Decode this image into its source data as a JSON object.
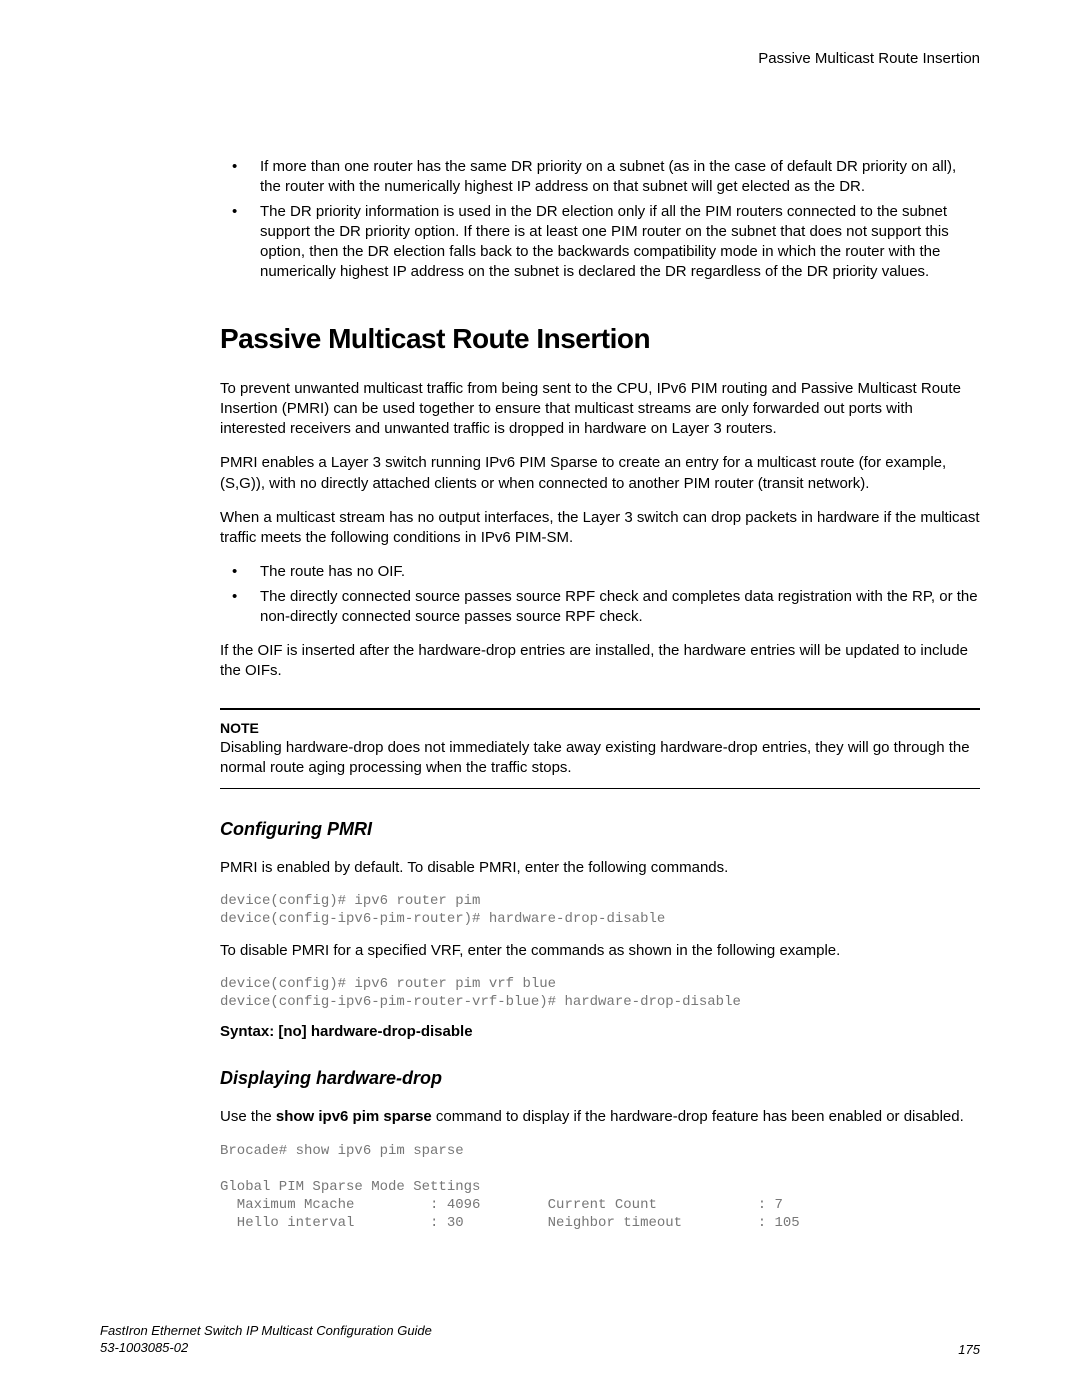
{
  "header": {
    "title": "Passive Multicast Route Insertion"
  },
  "intro_bullets": [
    "If more than one router has the same DR priority on a subnet (as in the case of default DR priority on all), the router with the numerically highest IP address on that subnet will get elected as the DR.",
    "The DR priority information is used in the DR election only if all the PIM routers connected to the subnet support the DR priority option. If there is at least one PIM router on the subnet that does not support this option, then the DR election falls back to the backwards compatibility mode in which the router with the numerically highest IP address on the subnet is declared the DR regardless of the DR priority values."
  ],
  "main_heading": "Passive Multicast Route Insertion",
  "para1": "To prevent unwanted multicast traffic from being sent to the CPU, IPv6 PIM routing and Passive Multicast Route Insertion (PMRI) can be used together to ensure that multicast streams are only forwarded out ports with interested receivers and unwanted traffic is dropped in hardware on Layer 3 routers.",
  "para2": "PMRI enables a Layer 3 switch running IPv6 PIM Sparse to create an entry for a multicast route (for example, (S,G)), with no directly attached clients or when connected to another PIM router (transit network).",
  "para3": "When a multicast stream has no output interfaces, the Layer 3 switch can drop packets in hardware if the multicast traffic meets the following conditions in IPv6 PIM-SM.",
  "conditions": [
    "The route has no OIF.",
    "The directly connected source passes source RPF check and completes data registration with the RP, or the non-directly connected source passes source RPF check."
  ],
  "para4": "If the OIF is inserted after the hardware-drop entries are installed, the hardware entries will be updated to include the OIFs.",
  "note": {
    "label": "NOTE",
    "text": "Disabling hardware-drop does not immediately take away existing hardware-drop entries, they will go through the normal route aging processing when the traffic stops."
  },
  "subheading1": "Configuring PMRI",
  "para5": "PMRI is enabled by default. To disable PMRI, enter the following commands.",
  "code1": "device(config)# ipv6 router pim\ndevice(config-ipv6-pim-router)# hardware-drop-disable",
  "para6": "To disable PMRI for a specified VRF, enter the commands as shown in the following example.",
  "code2": "device(config)# ipv6 router pim vrf blue\ndevice(config-ipv6-pim-router-vrf-blue)# hardware-drop-disable",
  "syntax": "Syntax: [no] hardware-drop-disable",
  "subheading2": "Displaying hardware-drop",
  "para7_a": "Use the ",
  "para7_b": "show ipv6 pim sparse",
  "para7_c": " command to display if the hardware-drop feature has been enabled or disabled.",
  "code3": "Brocade# show ipv6 pim sparse\n\nGlobal PIM Sparse Mode Settings\n  Maximum Mcache         : 4096        Current Count            : 7\n  Hello interval         : 30          Neighbor timeout         : 105",
  "footer": {
    "doc_title": "FastIron Ethernet Switch IP Multicast Configuration Guide",
    "doc_num": "53-1003085-02",
    "page": "175"
  }
}
